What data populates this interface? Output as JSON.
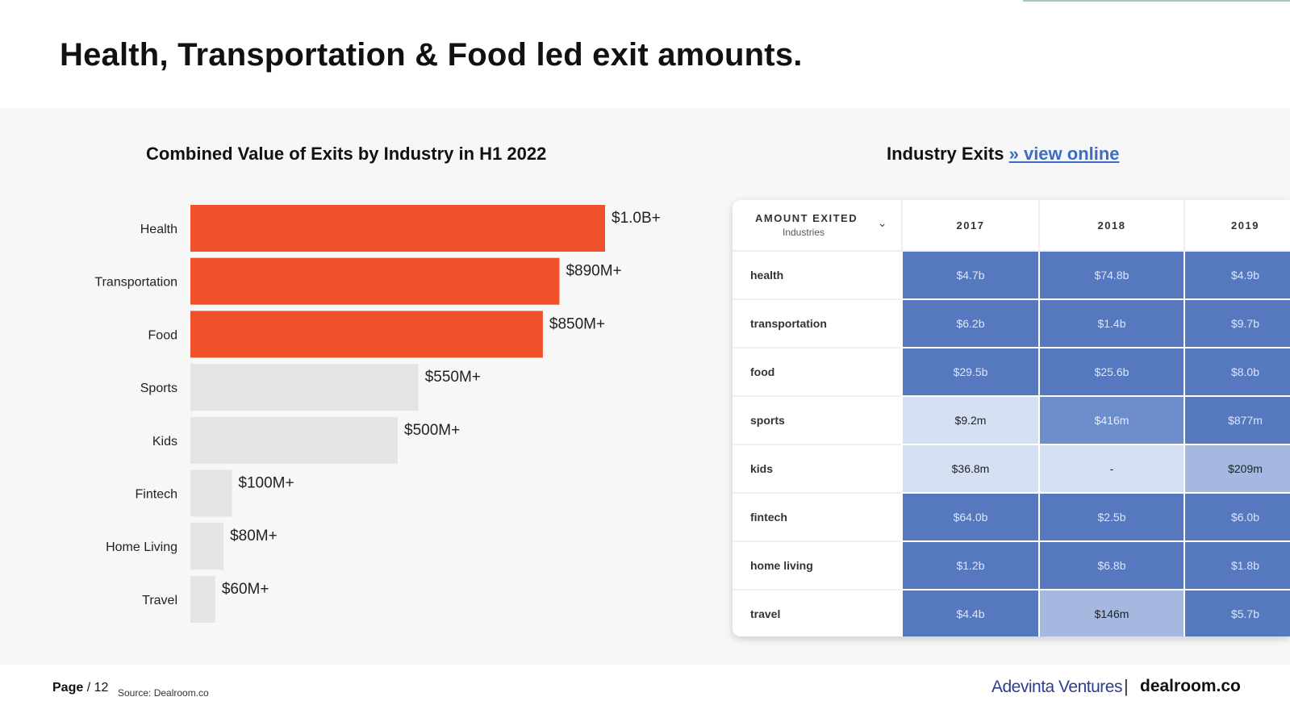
{
  "page_title": "Health, Transportation & Food led exit amounts.",
  "chart_data": {
    "type": "bar",
    "orientation": "horizontal",
    "title": "Combined Value of Exits by Industry in H1 2022",
    "categories": [
      "Health",
      "Transportation",
      "Food",
      "Sports",
      "Kids",
      "Fintech",
      "Home Living",
      "Travel"
    ],
    "values": [
      1000,
      890,
      850,
      550,
      500,
      100,
      80,
      60
    ],
    "unit": "$M",
    "value_labels": [
      "$1.0B+",
      "$890M+",
      "$850M+",
      "$550M+",
      "$500M+",
      "$100M+",
      "$80M+",
      "$60M+"
    ],
    "highlight": [
      true,
      true,
      true,
      false,
      false,
      false,
      false,
      false
    ],
    "xlim": [
      0,
      1000
    ],
    "xlabel": "",
    "ylabel": "",
    "grid": false
  },
  "colors": {
    "highlight": "#ef522b",
    "muted": "#e4e4e4",
    "accent": "#3b6ec2"
  },
  "table": {
    "title": "Industry Exits",
    "link_text": "» view online",
    "header_main": "AMOUNT EXITED",
    "header_sub": "Industries",
    "columns": [
      "2017",
      "2018",
      "2019"
    ],
    "rows": [
      {
        "name": "health",
        "values": [
          "$4.7b",
          "$74.8b",
          "$4.9b"
        ],
        "shades": [
          "dark",
          "dark",
          "dark"
        ]
      },
      {
        "name": "transportation",
        "values": [
          "$6.2b",
          "$1.4b",
          "$9.7b"
        ],
        "shades": [
          "dark",
          "dark",
          "dark"
        ]
      },
      {
        "name": "food",
        "values": [
          "$29.5b",
          "$25.6b",
          "$8.0b"
        ],
        "shades": [
          "dark",
          "dark",
          "dark"
        ]
      },
      {
        "name": "sports",
        "values": [
          "$9.2m",
          "$416m",
          "$877m"
        ],
        "shades": [
          "light",
          "mid",
          "dark"
        ]
      },
      {
        "name": "kids",
        "values": [
          "$36.8m",
          "-",
          "$209m"
        ],
        "shades": [
          "light",
          "light",
          "soft"
        ]
      },
      {
        "name": "fintech",
        "values": [
          "$64.0b",
          "$2.5b",
          "$6.0b"
        ],
        "shades": [
          "dark",
          "dark",
          "dark"
        ]
      },
      {
        "name": "home living",
        "values": [
          "$1.2b",
          "$6.8b",
          "$1.8b"
        ],
        "shades": [
          "dark",
          "dark",
          "dark"
        ]
      },
      {
        "name": "travel",
        "values": [
          "$4.4b",
          "$146m",
          "$5.7b"
        ],
        "shades": [
          "dark",
          "soft",
          "dark"
        ]
      }
    ]
  },
  "footer": {
    "page_label": "Page",
    "page_number": "/ 12",
    "source": "Source: Dealroom.co",
    "logo_left": "Adevinta Ventures",
    "separator": "|",
    "logo_right": "dealroom.co"
  }
}
